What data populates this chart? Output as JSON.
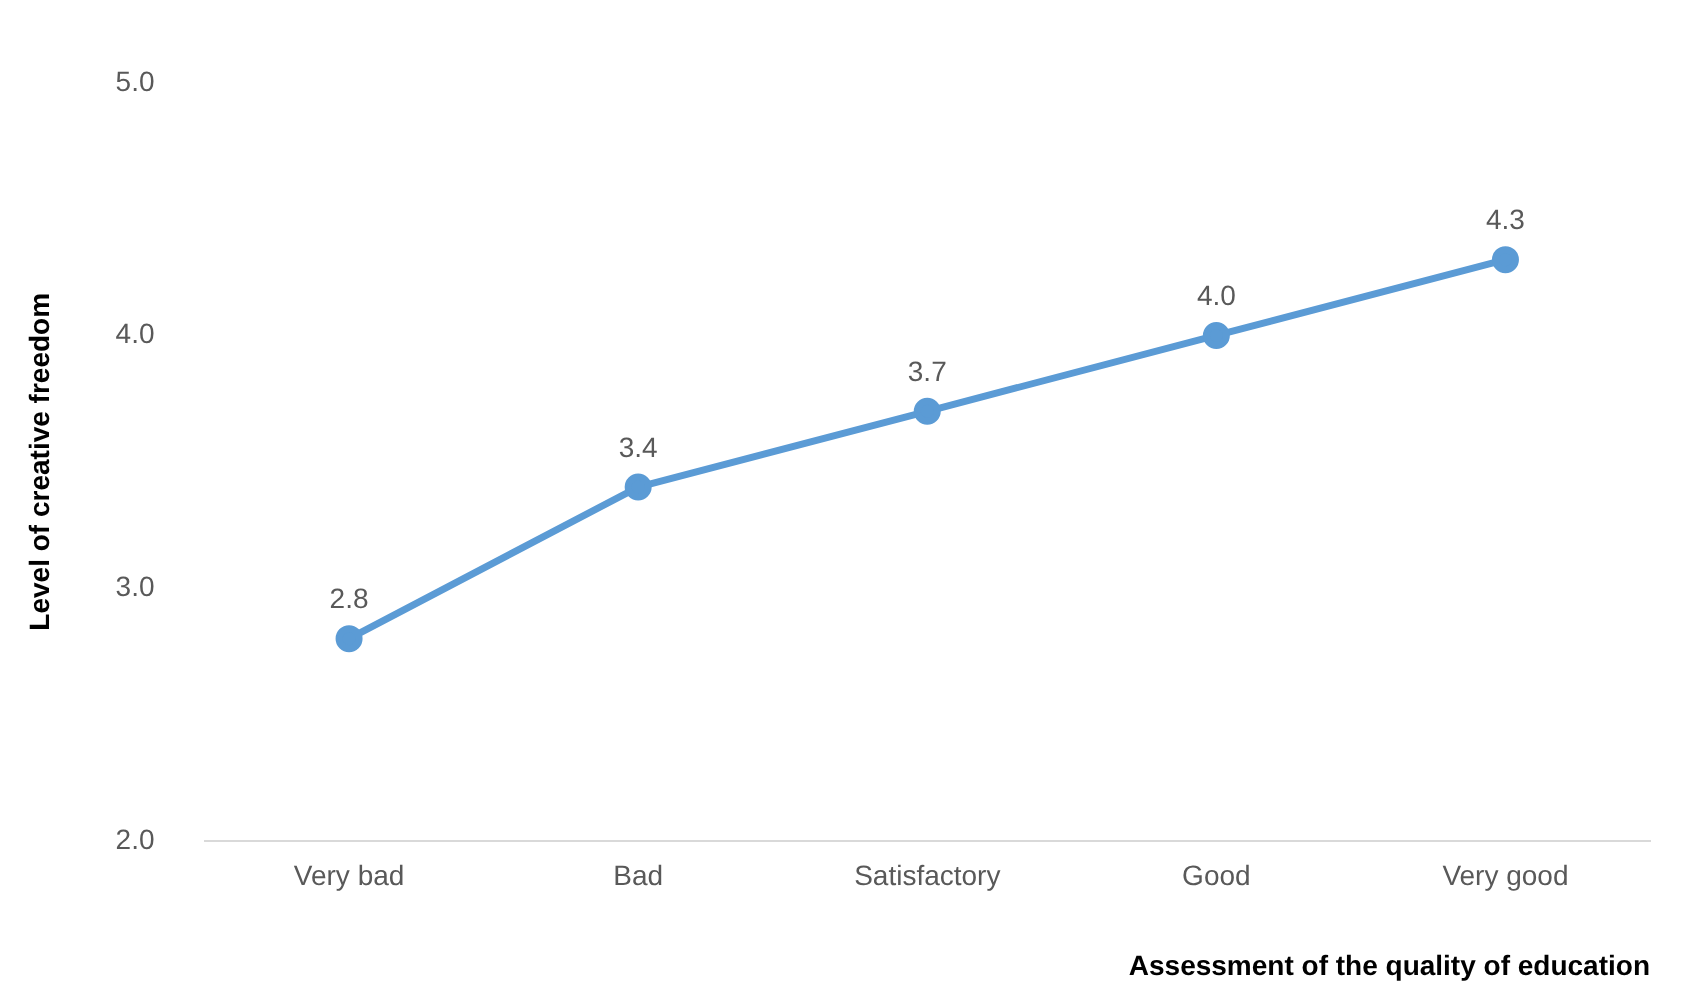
{
  "chart_data": {
    "type": "line",
    "xlabel": "Assessment of the quality of education",
    "ylabel": "Level of creative freedom",
    "categories": [
      "Very bad",
      "Bad",
      "Satisfactory",
      "Good",
      "Very good"
    ],
    "series": [
      {
        "color": "#5b9bd5",
        "values": [
          2.8,
          3.4,
          3.7,
          4.0,
          4.3
        ],
        "value_labels": [
          "2.8",
          "3.4",
          "3.7",
          "4.0",
          "4.3"
        ]
      }
    ],
    "ylim": [
      2,
      5
    ],
    "yticks": [
      {
        "value": 2,
        "label": "2.0"
      },
      {
        "value": 3,
        "label": "3.0"
      },
      {
        "value": 4,
        "label": "4.0"
      },
      {
        "value": 5,
        "label": "5.0"
      }
    ],
    "grid": false,
    "legend": false,
    "marker": "circle",
    "line_style": "solid"
  }
}
